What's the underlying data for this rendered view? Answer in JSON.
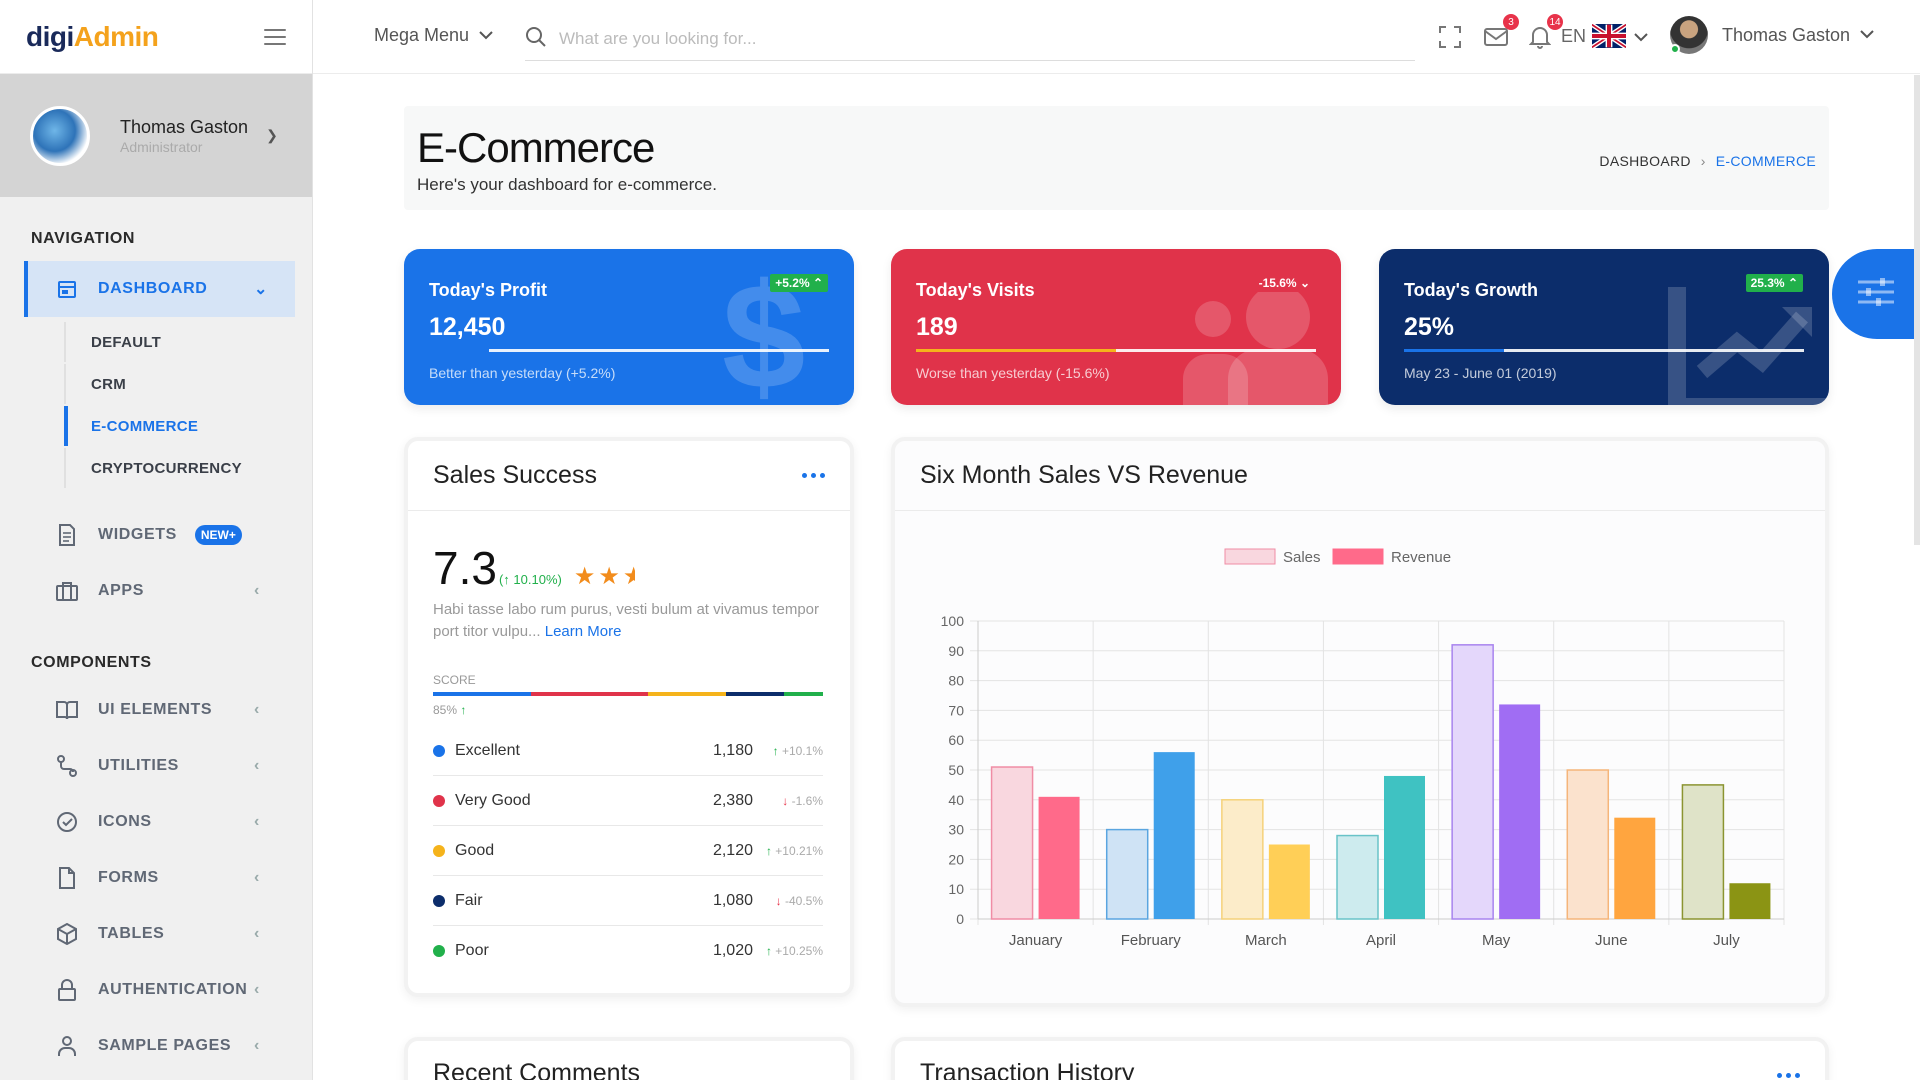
{
  "brand": {
    "part1": "digi",
    "part2": "Admin"
  },
  "profile": {
    "name": "Thomas Gaston",
    "role": "Administrator"
  },
  "nav": {
    "section_navigation": "NAVIGATION",
    "dashboard": "DASHBOARD",
    "sub_items": [
      "DEFAULT",
      "CRM",
      "E-COMMERCE",
      "CRYPTOCURRENCY"
    ],
    "widgets": "WIDGETS",
    "widgets_badge": "NEW+",
    "apps": "APPS",
    "section_components": "COMPONENTS",
    "components": [
      "UI ELEMENTS",
      "UTILITIES",
      "ICONS",
      "FORMS",
      "TABLES",
      "AUTHENTICATION",
      "SAMPLE PAGES"
    ]
  },
  "topbar": {
    "mega_menu": "Mega Menu",
    "search_placeholder": "What are you looking for...",
    "mail_count": "3",
    "notif_count": "14",
    "language": "EN",
    "user_name": "Thomas Gaston"
  },
  "page": {
    "title": "E-Commerce",
    "subtitle": "Here's your dashboard for e-commerce.",
    "crumb_home": "DASHBOARD",
    "crumb_current": "E-COMMERCE"
  },
  "stats": [
    {
      "title": "Today's Profit",
      "value": "12,450",
      "chip": "+5.2%",
      "note": "Better than yesterday (+5.2%)",
      "progress": 0.15,
      "bg": "#1a73e8",
      "chip_bg": "#21b04b",
      "bar_color": "#1a73e8"
    },
    {
      "title": "Today's Visits",
      "value": "189",
      "chip": "-15.6%",
      "note": "Worse than yesterday (-15.6%)",
      "progress": 0.5,
      "bg": "#e0334a",
      "chip_bg": "#e0334a",
      "bar_color": "#f5b31b"
    },
    {
      "title": "Today's Growth",
      "value": "25%",
      "chip": "25.3%",
      "note": "May 23 - June 01 (2019)",
      "progress": 0.25,
      "bg": "#0c2d6b",
      "chip_bg": "#21b04b",
      "bar_color": "#1a73e8"
    }
  ],
  "sales_success": {
    "title": "Sales Success",
    "rating": "7.3",
    "rating_change": "10.10%",
    "description": "Habi tasse labo rum purus, vesti bulum at vivamus tempor port titor vulpu...",
    "learn_more": "Learn More",
    "score_label": "SCORE",
    "score_pct": "85%",
    "score_segments": [
      {
        "color": "#1a73e8",
        "share": 0.25
      },
      {
        "color": "#e0334a",
        "share": 0.3
      },
      {
        "color": "#f5b31b",
        "share": 0.2
      },
      {
        "color": "#0c2d6b",
        "share": 0.15
      },
      {
        "color": "#21b04b",
        "share": 0.1
      }
    ],
    "rows": [
      {
        "label": "Excellent",
        "value": "1,180",
        "change": "+10.1%",
        "dir": "up",
        "color": "#1a73e8"
      },
      {
        "label": "Very Good",
        "value": "2,380",
        "change": "-1.6%",
        "dir": "down",
        "color": "#e0334a"
      },
      {
        "label": "Good",
        "value": "2,120",
        "change": "+10.21%",
        "dir": "up",
        "color": "#f5b31b"
      },
      {
        "label": "Fair",
        "value": "1,080",
        "change": "-40.5%",
        "dir": "down",
        "color": "#0c2d6b"
      },
      {
        "label": "Poor",
        "value": "1,020",
        "change": "+10.25%",
        "dir": "up",
        "color": "#21b04b"
      }
    ]
  },
  "bottom_cards": {
    "recent_comments": "Recent Comments",
    "transaction_history": "Transaction History"
  },
  "chart_data": {
    "type": "bar",
    "title": "Six Month Sales VS Revenue",
    "categories": [
      "January",
      "February",
      "March",
      "April",
      "May",
      "June",
      "July"
    ],
    "ylim": [
      0,
      100
    ],
    "yticks": [
      0,
      10,
      20,
      30,
      40,
      50,
      60,
      70,
      80,
      90,
      100
    ],
    "grid": true,
    "legend": "top-center",
    "series": [
      {
        "name": "Sales",
        "values": [
          51,
          30,
          40,
          28,
          92,
          50,
          45
        ]
      },
      {
        "name": "Revenue",
        "values": [
          41,
          56,
          25,
          48,
          72,
          34,
          12
        ]
      }
    ],
    "colors": [
      {
        "sales_fill": "#f9d7df",
        "sales_stroke": "#f08ca5",
        "revenue": "#ff6a8a"
      },
      {
        "sales_fill": "#cfe3f5",
        "sales_stroke": "#5aa5e0",
        "revenue": "#3fa0ea"
      },
      {
        "sales_fill": "#fcecc9",
        "sales_stroke": "#f5d27a",
        "revenue": "#ffcf57"
      },
      {
        "sales_fill": "#cdebee",
        "sales_stroke": "#68c3c8",
        "revenue": "#3fc2c2"
      },
      {
        "sales_fill": "#e4d7fb",
        "sales_stroke": "#a884ee",
        "revenue": "#a06df3"
      },
      {
        "sales_fill": "#fbe2cd",
        "sales_stroke": "#f5b57a",
        "revenue": "#ffa53f"
      },
      {
        "sales_fill": "#dfe3c8",
        "sales_stroke": "#8b9431",
        "revenue": "#8b9414"
      }
    ]
  }
}
